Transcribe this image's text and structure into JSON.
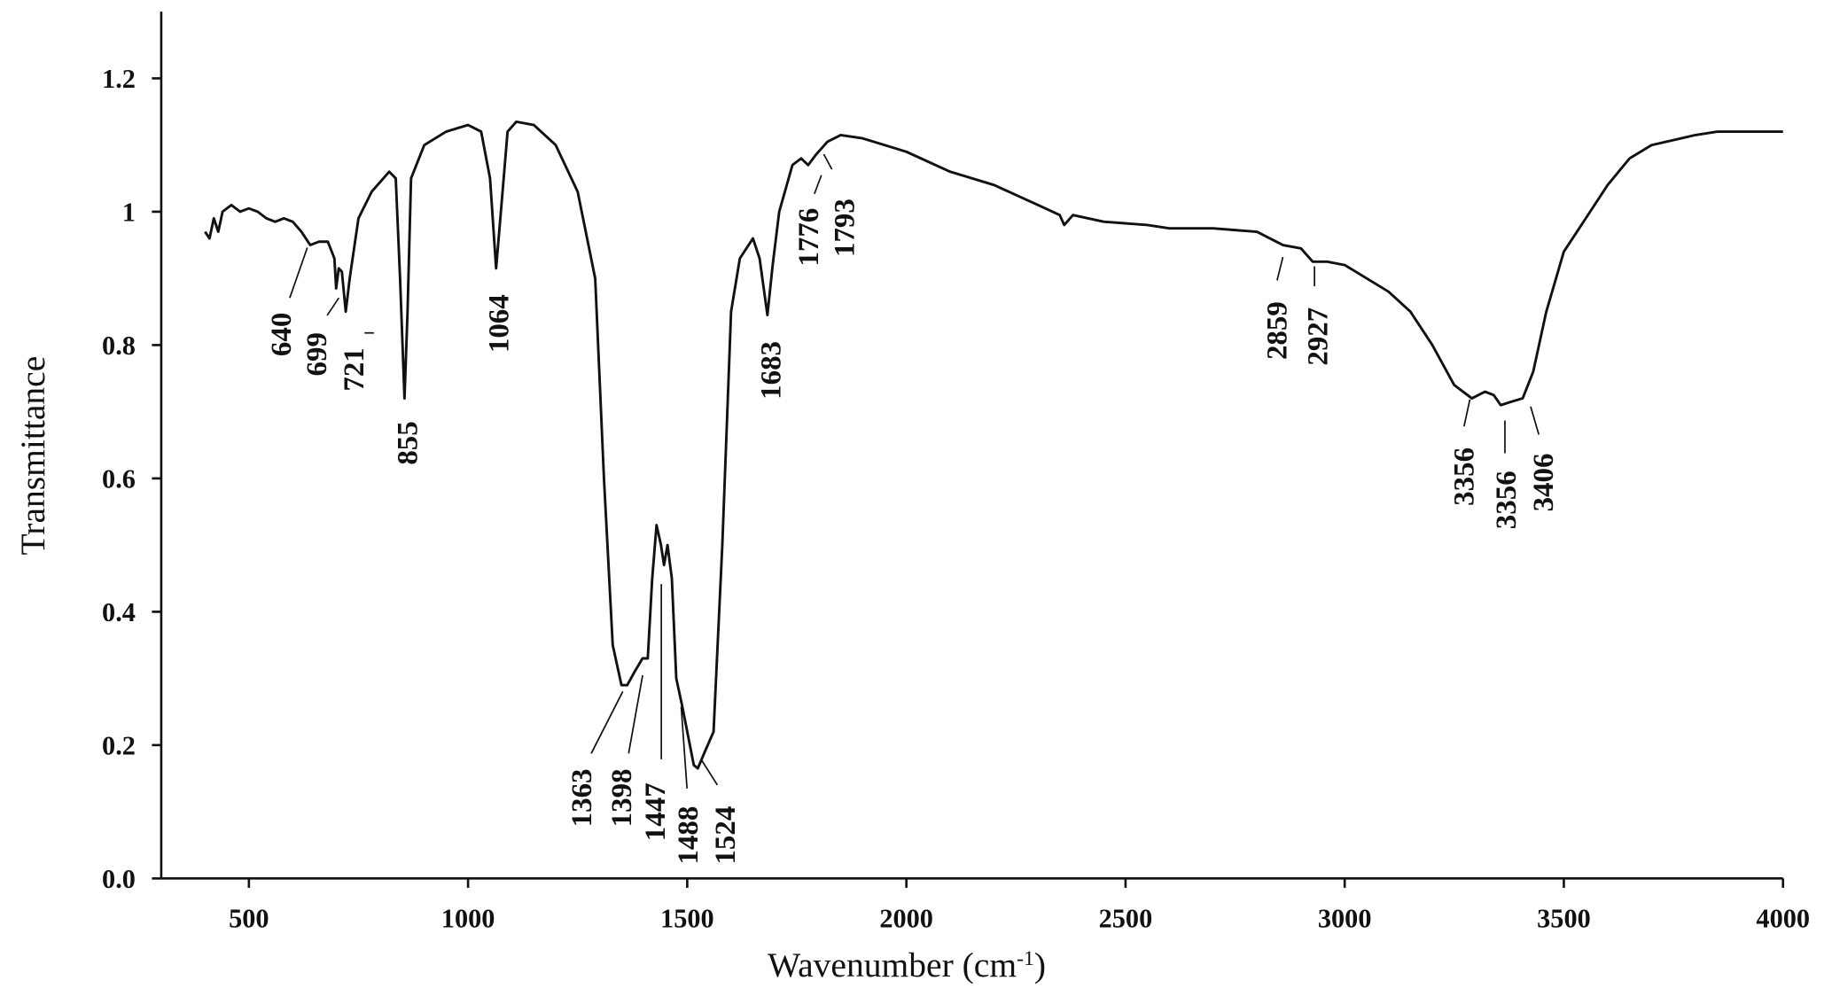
{
  "chart_data": {
    "type": "line",
    "x_label": [
      "Wavenumber (cm",
      "-1",
      ")"
    ],
    "y_label": "Transmittance",
    "xlim": [
      300,
      4000
    ],
    "xticks": [
      500,
      1000,
      1500,
      2000,
      2500,
      3000,
      3500,
      4000
    ],
    "ylim": [
      0,
      1.3
    ],
    "yticks": [
      {
        "value": 0,
        "label": "0.0"
      },
      0.2,
      0.4,
      0.6,
      0.8,
      1,
      1.2
    ],
    "series": [
      {
        "color": "#111111",
        "x": [
          400,
          410,
          420,
          430,
          440,
          460,
          480,
          500,
          520,
          540,
          560,
          580,
          600,
          620,
          640,
          660,
          680,
          695,
          699,
          705,
          712,
          721,
          730,
          750,
          780,
          820,
          835,
          845,
          855,
          862,
          870,
          900,
          950,
          1000,
          1030,
          1050,
          1064,
          1075,
          1090,
          1110,
          1150,
          1200,
          1250,
          1290,
          1310,
          1330,
          1350,
          1363,
          1380,
          1398,
          1410,
          1420,
          1430,
          1440,
          1447,
          1455,
          1465,
          1475,
          1488,
          1500,
          1515,
          1524,
          1540,
          1560,
          1580,
          1600,
          1620,
          1650,
          1665,
          1683,
          1695,
          1710,
          1740,
          1760,
          1776,
          1793,
          1820,
          1850,
          1900,
          2000,
          2100,
          2200,
          2300,
          2350,
          2360,
          2380,
          2450,
          2550,
          2600,
          2700,
          2800,
          2859,
          2900,
          2927,
          2960,
          3000,
          3100,
          3150,
          3200,
          3250,
          3290,
          3320,
          3340,
          3356,
          3380,
          3406,
          3430,
          3460,
          3500,
          3550,
          3600,
          3650,
          3700,
          3800,
          3850,
          3900,
          4000
        ],
        "values": [
          0.97,
          0.96,
          0.99,
          0.97,
          1.0,
          1.01,
          1.0,
          1.005,
          1.0,
          0.99,
          0.985,
          0.99,
          0.985,
          0.97,
          0.95,
          0.955,
          0.955,
          0.93,
          0.885,
          0.915,
          0.91,
          0.85,
          0.9,
          0.99,
          1.03,
          1.06,
          1.05,
          0.9,
          0.72,
          0.85,
          1.05,
          1.1,
          1.12,
          1.13,
          1.12,
          1.05,
          0.915,
          1.0,
          1.12,
          1.135,
          1.13,
          1.1,
          1.03,
          0.9,
          0.6,
          0.35,
          0.29,
          0.29,
          0.31,
          0.33,
          0.33,
          0.45,
          0.53,
          0.5,
          0.47,
          0.5,
          0.45,
          0.3,
          0.26,
          0.22,
          0.17,
          0.165,
          0.19,
          0.22,
          0.5,
          0.85,
          0.93,
          0.96,
          0.93,
          0.845,
          0.92,
          1.0,
          1.07,
          1.08,
          1.07,
          1.085,
          1.105,
          1.115,
          1.11,
          1.09,
          1.06,
          1.04,
          1.01,
          0.995,
          0.98,
          0.995,
          0.985,
          0.98,
          0.975,
          0.975,
          0.97,
          0.95,
          0.945,
          0.925,
          0.925,
          0.92,
          0.88,
          0.85,
          0.8,
          0.74,
          0.72,
          0.73,
          0.725,
          0.71,
          0.715,
          0.72,
          0.76,
          0.85,
          0.94,
          0.99,
          1.04,
          1.08,
          1.1,
          1.115,
          1.12,
          1.12,
          1.12
        ]
      }
    ],
    "annotations": [
      "640",
      "699",
      "721",
      "855",
      "1064",
      "1363",
      "1398",
      "1447",
      "1488",
      "1524",
      "1683",
      "1776",
      "1793",
      "2859",
      "2927",
      "3356",
      "3356",
      "3406"
    ]
  }
}
